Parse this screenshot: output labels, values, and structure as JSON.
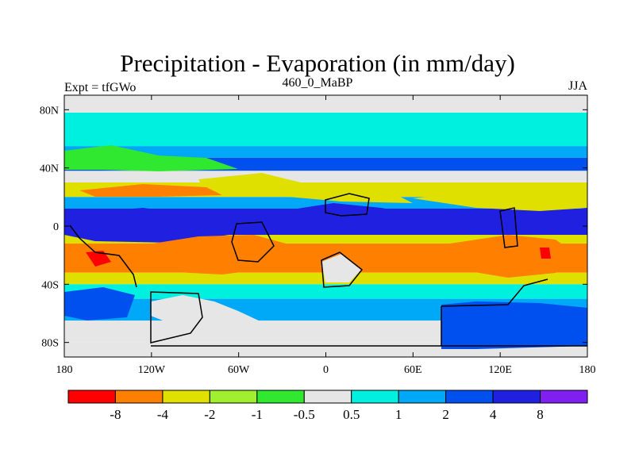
{
  "chart_data": {
    "type": "heatmap",
    "title": "Precipitation - Evaporation (in mm/day)",
    "left_string": "Expt = tfGWo",
    "center_string": "460_0_MaBP",
    "right_string": "JJA",
    "x_ticks": [
      "180",
      "120W",
      "60W",
      "0",
      "60E",
      "120E",
      "180"
    ],
    "x_tick_values": [
      -180,
      -120,
      -60,
      0,
      60,
      120,
      180
    ],
    "y_ticks": [
      "80N",
      "40N",
      "0",
      "40S",
      "80S"
    ],
    "y_tick_values": [
      80,
      40,
      0,
      -40,
      -80
    ],
    "xlim": [
      -180,
      180
    ],
    "ylim": [
      -90,
      90
    ],
    "colorbar": {
      "levels": [
        "-8",
        "-4",
        "-2",
        "-1",
        "-0.5",
        "0.5",
        "1",
        "2",
        "4",
        "8"
      ],
      "colors": [
        "#ff0000",
        "#ff8000",
        "#e0e000",
        "#a0f030",
        "#30e830",
        "#e6e6e6",
        "#00f0e0",
        "#00a8f8",
        "#0050f0",
        "#2020e0",
        "#8020f0"
      ]
    },
    "zonal_bands": [
      {
        "lat": [
          78,
          90
        ],
        "color": "#e6e6e6"
      },
      {
        "lat": [
          55,
          78
        ],
        "color": "#00f0e0"
      },
      {
        "lat": [
          47,
          55
        ],
        "color": "#00a8f8"
      },
      {
        "lat": [
          38,
          47
        ],
        "color": "#0050f0"
      },
      {
        "lat": [
          30,
          38
        ],
        "color": "#e6e6e6"
      },
      {
        "lat": [
          20,
          30
        ],
        "color": "#e0e000"
      },
      {
        "lat": [
          12,
          20
        ],
        "color": "#00a8f8"
      },
      {
        "lat": [
          -6,
          12
        ],
        "color": "#2020e0"
      },
      {
        "lat": [
          -12,
          -6
        ],
        "color": "#e0e000"
      },
      {
        "lat": [
          -32,
          -12
        ],
        "color": "#ff8000"
      },
      {
        "lat": [
          -40,
          -32
        ],
        "color": "#e0e000"
      },
      {
        "lat": [
          -50,
          -40
        ],
        "color": "#00f0e0"
      },
      {
        "lat": [
          -65,
          -50
        ],
        "color": "#00a8f8"
      },
      {
        "lat": [
          -80,
          -65
        ],
        "color": "#e6e6e6"
      },
      {
        "lat": [
          -90,
          -80
        ],
        "color": "#e6e6e6"
      }
    ]
  }
}
